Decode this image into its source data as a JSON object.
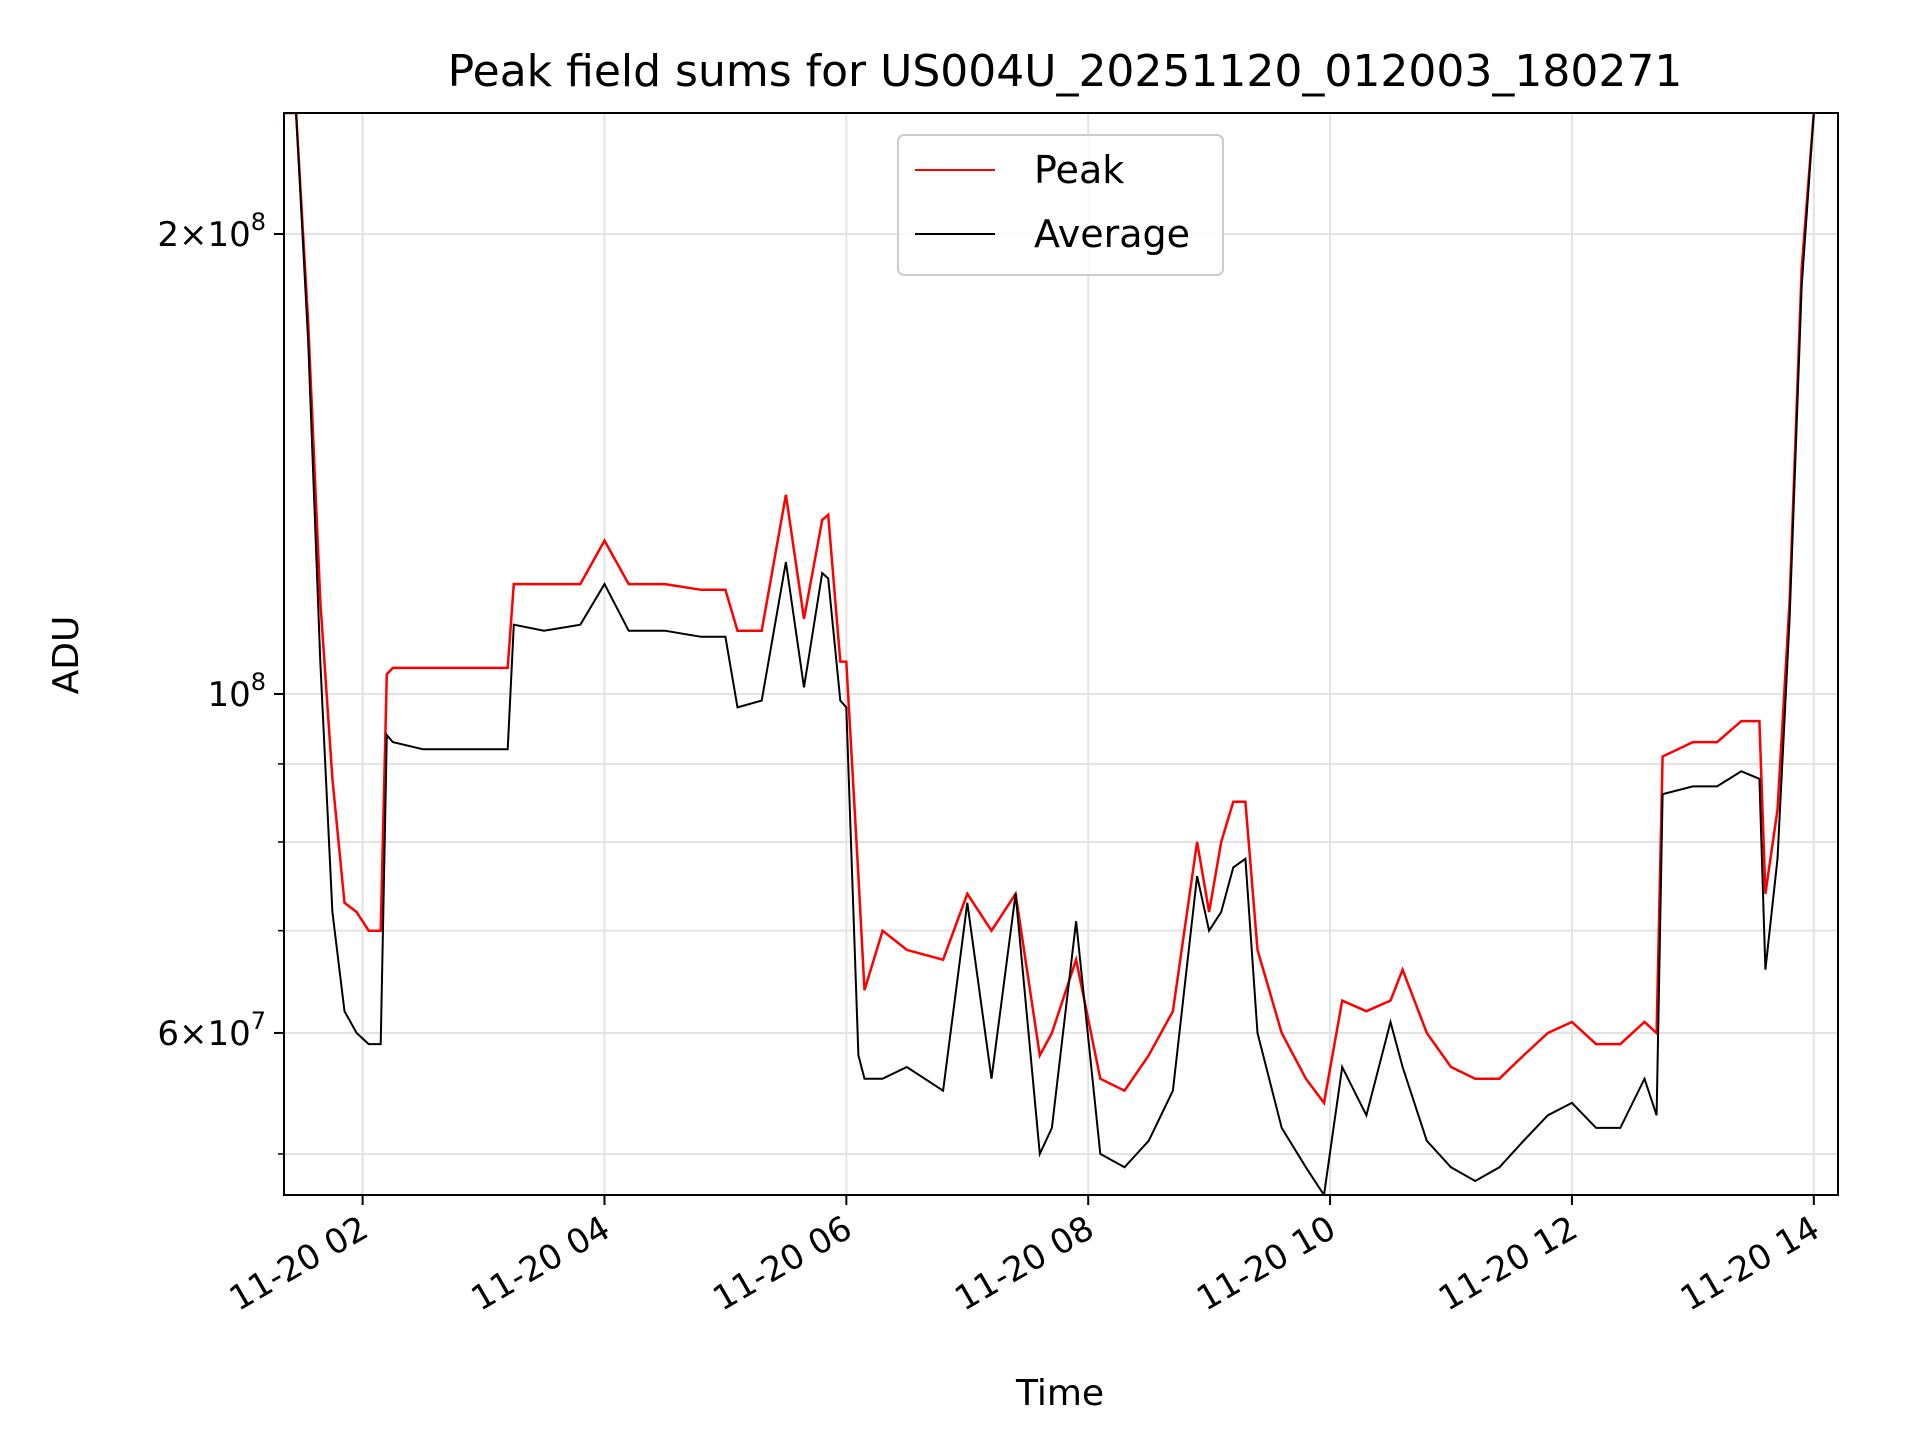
{
  "chart_data": {
    "type": "line",
    "title": "Peak field sums for US004U_20251120_012003_180271",
    "xlabel": "Time",
    "ylabel": "ADU",
    "yscale": "log",
    "ylim": [
      47000000,
      240000000
    ],
    "xlim_hours": [
      1.35,
      14.2
    ],
    "grid": true,
    "legend_position": "upper center",
    "x_ticks": [
      {
        "hour": 2,
        "label": "11-20 02"
      },
      {
        "hour": 4,
        "label": "11-20 04"
      },
      {
        "hour": 6,
        "label": "11-20 06"
      },
      {
        "hour": 8,
        "label": "11-20 08"
      },
      {
        "hour": 10,
        "label": "11-20 10"
      },
      {
        "hour": 12,
        "label": "11-20 12"
      },
      {
        "hour": 14,
        "label": "11-20 14"
      }
    ],
    "y_major_ticks": [
      {
        "value": 200000000,
        "base": "2×10",
        "exp": "8"
      },
      {
        "value": 100000000,
        "base": "10",
        "exp": "8"
      },
      {
        "value": 60000000,
        "base": "6×10",
        "exp": "7"
      }
    ],
    "y_minor_gridlines": [
      50000000,
      70000000,
      80000000,
      90000000
    ],
    "series": [
      {
        "name": "Peak",
        "color": "#ff0000",
        "x_hours": [
          1.35,
          1.45,
          1.55,
          1.65,
          1.75,
          1.85,
          1.95,
          2.05,
          2.15,
          2.2,
          2.25,
          2.5,
          2.8,
          3.0,
          3.2,
          3.25,
          3.5,
          3.8,
          4.0,
          4.2,
          4.5,
          4.8,
          5.0,
          5.1,
          5.3,
          5.5,
          5.65,
          5.8,
          5.85,
          5.95,
          6.0,
          6.1,
          6.15,
          6.3,
          6.5,
          6.8,
          7.0,
          7.2,
          7.4,
          7.6,
          7.7,
          7.9,
          8.1,
          8.3,
          8.5,
          8.7,
          8.9,
          9.0,
          9.1,
          9.2,
          9.3,
          9.4,
          9.6,
          9.8,
          9.95,
          10.1,
          10.3,
          10.5,
          10.6,
          10.8,
          11.0,
          11.2,
          11.4,
          11.6,
          11.8,
          12.0,
          12.2,
          12.4,
          12.6,
          12.7,
          12.75,
          13.0,
          13.2,
          13.4,
          13.55,
          13.6,
          13.7,
          13.8,
          13.9,
          14.0
        ],
        "values": [
          240000000,
          240000000,
          175000000,
          115000000,
          88000000,
          73000000,
          72000000,
          70000000,
          70000000,
          103000000,
          104000000,
          104000000,
          104000000,
          104000000,
          104000000,
          118000000,
          118000000,
          118000000,
          126000000,
          118000000,
          118000000,
          117000000,
          117000000,
          110000000,
          110000000,
          135000000,
          112000000,
          130000000,
          131000000,
          105000000,
          105000000,
          76000000,
          64000000,
          70000000,
          68000000,
          67000000,
          74000000,
          70000000,
          74000000,
          58000000,
          60000000,
          67000000,
          56000000,
          55000000,
          58000000,
          62000000,
          80000000,
          72000000,
          80000000,
          85000000,
          85000000,
          68000000,
          60000000,
          56000000,
          54000000,
          63000000,
          62000000,
          63000000,
          66000000,
          60000000,
          57000000,
          56000000,
          56000000,
          58000000,
          60000000,
          61000000,
          59000000,
          59000000,
          61000000,
          60000000,
          91000000,
          93000000,
          93000000,
          96000000,
          96000000,
          74000000,
          84000000,
          115000000,
          190000000,
          240000000
        ]
      },
      {
        "name": "Average",
        "color": "#000000",
        "x_hours": [
          1.35,
          1.45,
          1.55,
          1.65,
          1.75,
          1.85,
          1.95,
          2.05,
          2.15,
          2.2,
          2.25,
          2.5,
          2.8,
          3.0,
          3.2,
          3.25,
          3.5,
          3.8,
          4.0,
          4.2,
          4.5,
          4.8,
          5.0,
          5.1,
          5.3,
          5.5,
          5.65,
          5.8,
          5.85,
          5.95,
          6.0,
          6.1,
          6.15,
          6.3,
          6.5,
          6.8,
          7.0,
          7.2,
          7.4,
          7.6,
          7.7,
          7.9,
          8.1,
          8.3,
          8.5,
          8.7,
          8.9,
          9.0,
          9.1,
          9.2,
          9.3,
          9.4,
          9.6,
          9.8,
          9.95,
          10.1,
          10.3,
          10.5,
          10.6,
          10.8,
          11.0,
          11.2,
          11.4,
          11.6,
          11.8,
          12.0,
          12.2,
          12.4,
          12.6,
          12.7,
          12.75,
          13.0,
          13.2,
          13.4,
          13.55,
          13.6,
          13.7,
          13.8,
          13.9,
          14.0
        ],
        "values": [
          240000000,
          240000000,
          170000000,
          105000000,
          72000000,
          62000000,
          60000000,
          59000000,
          59000000,
          94000000,
          93000000,
          92000000,
          92000000,
          92000000,
          92000000,
          111000000,
          110000000,
          111000000,
          118000000,
          110000000,
          110000000,
          109000000,
          109000000,
          98000000,
          99000000,
          122000000,
          101000000,
          120000000,
          119000000,
          99000000,
          98000000,
          58000000,
          56000000,
          56000000,
          57000000,
          55000000,
          73000000,
          56000000,
          74000000,
          50000000,
          52000000,
          71000000,
          50000000,
          49000000,
          51000000,
          55000000,
          76000000,
          70000000,
          72000000,
          77000000,
          78000000,
          60000000,
          52000000,
          49000000,
          47000000,
          57000000,
          53000000,
          61000000,
          57000000,
          51000000,
          49000000,
          48000000,
          49000000,
          51000000,
          53000000,
          54000000,
          52000000,
          52000000,
          56000000,
          53000000,
          86000000,
          87000000,
          87000000,
          89000000,
          88000000,
          66000000,
          78000000,
          112000000,
          185000000,
          240000000
        ]
      }
    ]
  }
}
